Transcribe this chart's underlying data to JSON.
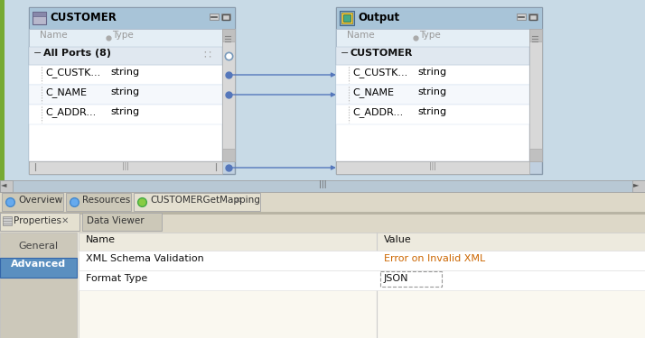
{
  "bg_mapping": "#ccdde8",
  "bg_bottom": "#e4e0d0",
  "bg_white": "#ffffff",
  "bg_advanced_selected": "#5a8fc0",
  "text_orange": "#cc6600",
  "arrow_color": "#5577bb",
  "green_left_border": "#77aa33",
  "title_customer": "CUSTOMER",
  "title_output": "Output",
  "col_name": "Name",
  "col_type": "Type",
  "all_ports_label": "All Ports (8)",
  "customer_group_label": "CUSTOMER",
  "rows": [
    "C_CUSTK...",
    "C_NAME",
    "C_ADDR..."
  ],
  "row_type": "string",
  "tab_overview": "Overview",
  "tab_resources": "Resources",
  "tab_mapping": "CUSTOMERGetMapping",
  "prop_tab": "Properties",
  "data_viewer_tab": "Data Viewer",
  "prop_general": "General",
  "prop_advanced": "Advanced",
  "prop_name_col": "Name",
  "prop_value_col": "Value",
  "prop_row1_name": "XML Schema Validation",
  "prop_row1_value": "Error on Invalid XML",
  "prop_row2_name": "Format Type",
  "prop_row2_value": "JSON",
  "figsize": [
    7.14,
    3.75
  ],
  "dpi": 100
}
